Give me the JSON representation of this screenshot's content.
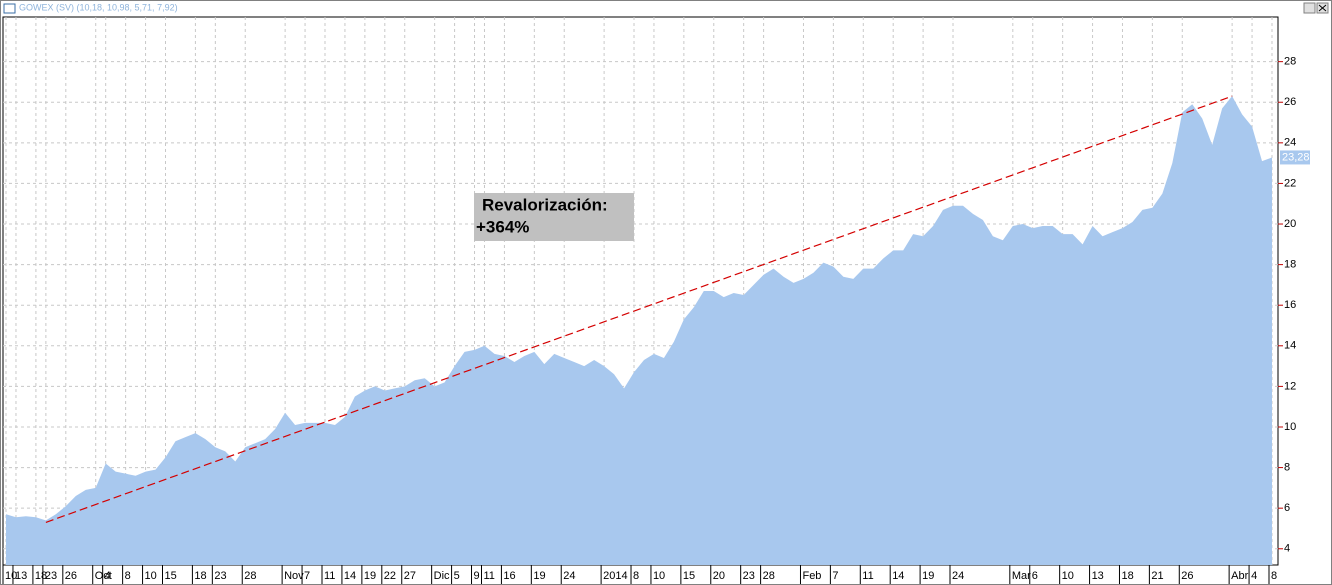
{
  "chart_data": {
    "type": "area",
    "title": "GOWEX (SV) (10,18, 10,98, 5,71, 7,92)",
    "color": "#a8c8ee",
    "categories": [
      "10",
      "13",
      null,
      "18",
      "23",
      null,
      "26",
      null,
      null,
      "Oct",
      "4",
      null,
      "8",
      null,
      "10",
      null,
      "15",
      null,
      null,
      "18",
      null,
      "23",
      null,
      null,
      "28",
      null,
      null,
      null,
      "Nov",
      null,
      "7",
      null,
      "11",
      null,
      "14",
      null,
      "19",
      null,
      "22",
      null,
      "27",
      null,
      null,
      "Dic",
      null,
      "5",
      null,
      "9",
      "11",
      null,
      "16",
      null,
      null,
      "19",
      null,
      null,
      "24",
      null,
      null,
      null,
      "2014",
      null,
      null,
      "8",
      null,
      "10",
      null,
      null,
      "15",
      null,
      null,
      "20",
      null,
      null,
      "23",
      null,
      "28",
      null,
      null,
      null,
      "Feb",
      null,
      null,
      "7",
      null,
      null,
      "11",
      null,
      null,
      "14",
      null,
      null,
      "19",
      null,
      null,
      "24",
      null,
      null,
      null,
      null,
      null,
      "Mar",
      null,
      "6",
      null,
      null,
      "10",
      null,
      null,
      "13",
      null,
      null,
      "18",
      null,
      null,
      "21",
      null,
      null,
      "26",
      null,
      null,
      null,
      null,
      "Abr",
      null,
      "4",
      null,
      "8"
    ],
    "values": [
      5.7,
      5.55,
      5.6,
      5.55,
      5.4,
      5.7,
      6.1,
      6.6,
      6.9,
      7.0,
      8.2,
      7.8,
      7.7,
      7.6,
      7.8,
      7.9,
      8.5,
      9.3,
      9.5,
      9.7,
      9.4,
      9.0,
      8.8,
      8.3,
      9.0,
      9.2,
      9.4,
      9.9,
      10.7,
      10.1,
      10.2,
      10.2,
      10.2,
      10.1,
      10.5,
      11.5,
      11.8,
      12.0,
      11.8,
      11.9,
      12.0,
      12.3,
      12.4,
      12.0,
      12.2,
      13.0,
      13.7,
      13.8,
      14.0,
      13.6,
      13.5,
      13.2,
      13.5,
      13.7,
      13.1,
      13.6,
      13.4,
      13.2,
      13.0,
      13.3,
      13.0,
      12.6,
      11.9,
      12.7,
      13.3,
      13.6,
      13.4,
      14.2,
      15.3,
      15.9,
      16.7,
      16.7,
      16.4,
      16.6,
      16.5,
      17.0,
      17.5,
      17.8,
      17.4,
      17.1,
      17.3,
      17.6,
      18.1,
      17.9,
      17.4,
      17.3,
      17.8,
      17.8,
      18.3,
      18.7,
      18.7,
      19.5,
      19.4,
      19.9,
      20.7,
      20.9,
      20.9,
      20.5,
      20.2,
      19.4,
      19.2,
      19.9,
      20.0,
      19.8,
      19.9,
      19.9,
      19.5,
      19.5,
      19.0,
      19.9,
      19.4,
      19.6,
      19.8,
      20.1,
      20.7,
      20.8,
      21.5,
      23.0,
      25.5,
      25.9,
      25.2,
      23.9,
      25.7,
      26.3,
      25.4,
      24.8,
      23.1,
      23.28
    ],
    "value_labels": [
      null,
      null,
      null,
      null,
      null,
      null,
      null,
      null,
      null,
      null,
      null,
      null,
      null,
      null,
      null,
      null,
      null,
      null,
      null,
      null,
      null,
      null,
      null,
      null,
      null,
      null,
      null,
      null,
      null,
      null,
      null,
      null,
      null,
      null,
      null,
      null,
      null,
      null,
      null,
      null,
      null,
      null,
      null,
      null,
      null,
      null,
      null,
      null,
      null,
      null,
      null,
      null,
      null,
      null,
      null,
      null,
      null,
      null,
      null,
      null,
      null,
      null,
      null,
      null,
      null,
      null,
      null,
      null,
      null,
      null,
      null,
      null,
      null,
      null,
      null,
      null,
      null,
      null,
      null,
      null,
      null,
      null,
      null,
      null,
      null,
      null,
      null,
      null,
      null,
      null,
      null,
      null,
      null,
      null,
      null,
      null,
      null,
      null,
      null,
      null,
      null,
      null,
      null,
      null,
      null,
      null,
      null,
      null,
      null,
      null,
      null,
      null,
      null,
      null,
      null,
      null,
      null,
      null,
      null,
      null,
      null,
      null,
      null,
      null,
      null,
      null,
      null,
      "23,28"
    ],
    "ylim": [
      3.2,
      30.2
    ],
    "yticks": [
      4,
      6,
      8,
      10,
      12,
      14,
      16,
      18,
      20,
      22,
      24,
      26,
      28
    ],
    "grid": true,
    "trend_line": {
      "x": [
        4,
        123
      ],
      "y": [
        5.3,
        26.3
      ],
      "color": "#d40000"
    },
    "annotation": {
      "lines": [
        "Revalorización:",
        "+364%"
      ]
    }
  }
}
